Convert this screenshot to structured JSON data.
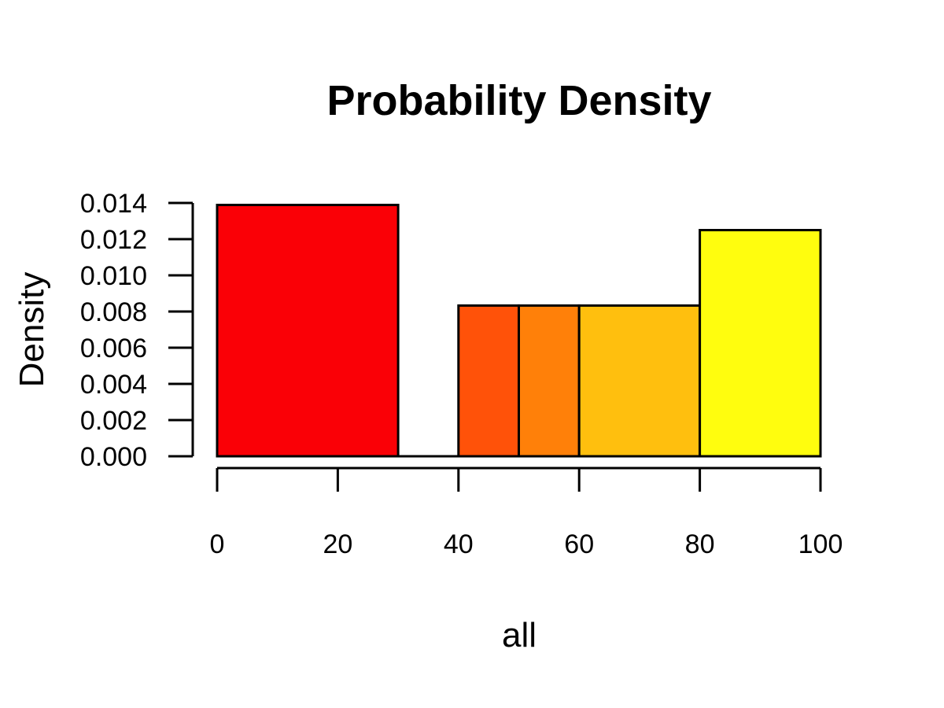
{
  "chart_data": {
    "type": "bar",
    "subtype": "histogram",
    "title": "Probability Density",
    "xlabel": "all",
    "ylabel": "Density",
    "xlim": [
      0,
      100
    ],
    "ylim": [
      0,
      0.014
    ],
    "x_ticks": [
      "0",
      "20",
      "40",
      "60",
      "80",
      "100"
    ],
    "y_ticks": [
      "0.000",
      "0.002",
      "0.004",
      "0.006",
      "0.008",
      "0.010",
      "0.012",
      "0.014"
    ],
    "bins": [
      {
        "x_start": 0,
        "x_end": 30,
        "density": 0.01389,
        "color": "#FA0006"
      },
      {
        "x_start": 30,
        "x_end": 40,
        "density": 0.0,
        "color": "#FF2A00"
      },
      {
        "x_start": 40,
        "x_end": 50,
        "density": 0.00833,
        "color": "#FF5209"
      },
      {
        "x_start": 50,
        "x_end": 60,
        "density": 0.00833,
        "color": "#FF8009"
      },
      {
        "x_start": 60,
        "x_end": 80,
        "density": 0.00833,
        "color": "#FFBF0E"
      },
      {
        "x_start": 80,
        "x_end": 100,
        "density": 0.0125,
        "color": "#FFFD0E"
      }
    ],
    "grid": false,
    "legend": "none"
  }
}
